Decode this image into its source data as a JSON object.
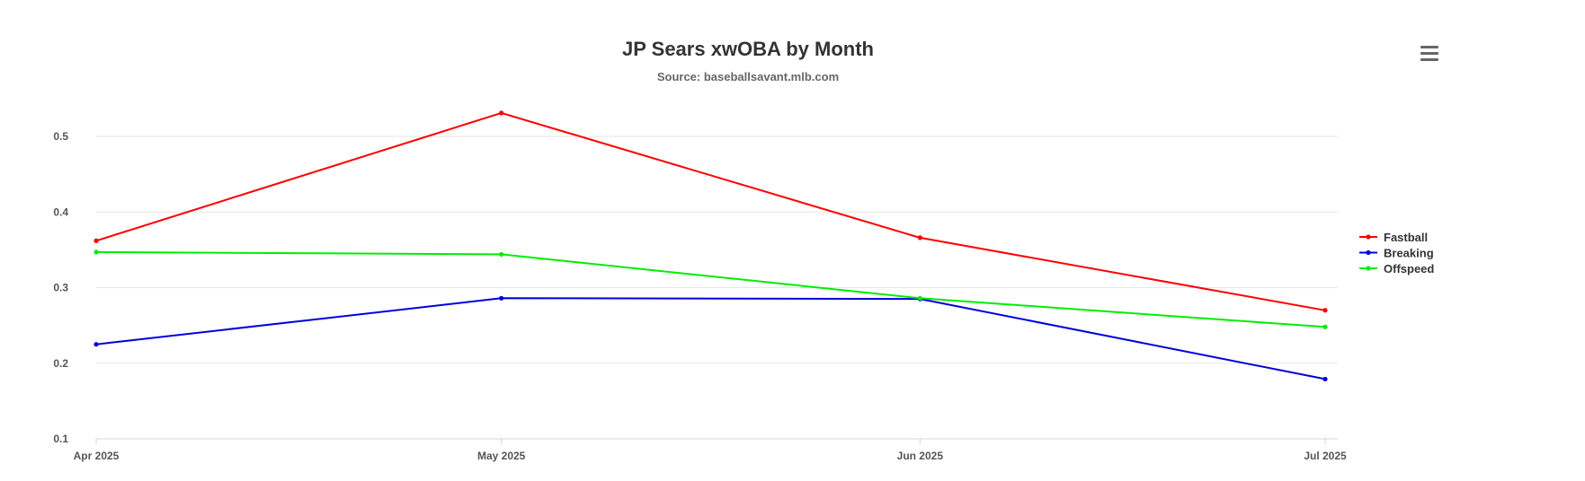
{
  "chart_data": {
    "type": "line",
    "title": "JP Sears xwOBA by Month",
    "subtitle": "Source: baseballsavant.mlb.com",
    "categories": [
      "Apr 2025",
      "May 2025",
      "Jun 2025",
      "Jul 2025"
    ],
    "xlabel": "",
    "ylabel": "",
    "ylim": [
      0.1,
      0.5
    ],
    "yticks": [
      "0.1",
      "0.2",
      "0.3",
      "0.4",
      "0.5"
    ],
    "grid": true,
    "legend_position": "right",
    "series": [
      {
        "name": "Fastball",
        "color": "#ff0000",
        "values": [
          0.362,
          0.531,
          0.366,
          0.27
        ]
      },
      {
        "name": "Breaking",
        "color": "#0000dd",
        "values": [
          0.225,
          0.286,
          0.285,
          0.179
        ]
      },
      {
        "name": "Offspeed",
        "color": "#00ee00",
        "values": [
          0.347,
          0.344,
          0.286,
          0.248
        ]
      }
    ]
  },
  "menu": {
    "icon": "hamburger-menu-icon"
  }
}
